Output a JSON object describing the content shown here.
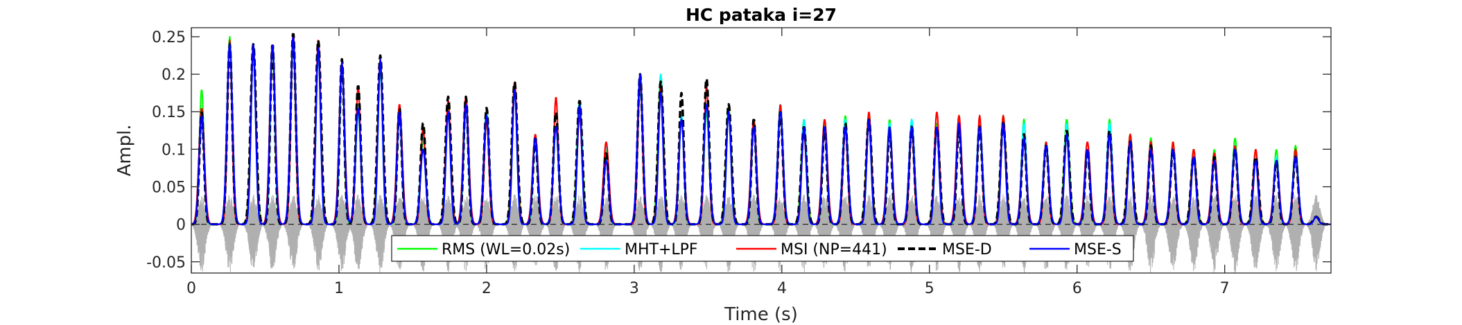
{
  "chart_data": {
    "type": "line",
    "title": "HC pataka i=27",
    "xlabel": "Time (s)",
    "ylabel": "Ampl.",
    "xlim": [
      0,
      7.72
    ],
    "ylim": [
      -0.065,
      0.262
    ],
    "xticks": [
      0,
      1,
      2,
      3,
      4,
      5,
      6,
      7
    ],
    "xtick_labels": [
      "0",
      "1",
      "2",
      "3",
      "4",
      "5",
      "6",
      "7"
    ],
    "yticks": [
      -0.05,
      0,
      0.05,
      0.1,
      0.15,
      0.2,
      0.25
    ],
    "ytick_labels": [
      "-0.05",
      "0",
      "0.05",
      "0.1",
      "0.15",
      "0.2",
      "0.25"
    ],
    "grid": false,
    "legend_position": "bottom",
    "waveform": {
      "color": "#b0b0b0",
      "min": -0.065,
      "max": 0.04
    },
    "zero_line": {
      "y": 0,
      "style": "dashed"
    },
    "syllable_times": [
      0.07,
      0.26,
      0.42,
      0.55,
      0.69,
      0.86,
      1.02,
      1.13,
      1.28,
      1.41,
      1.57,
      1.74,
      1.86,
      2.0,
      2.19,
      2.33,
      2.47,
      2.63,
      2.81,
      3.04,
      3.18,
      3.32,
      3.49,
      3.64,
      3.81,
      3.99,
      4.15,
      4.29,
      4.43,
      4.59,
      4.73,
      4.88,
      5.05,
      5.2,
      5.34,
      5.5,
      5.64,
      5.79,
      5.93,
      6.07,
      6.22,
      6.36,
      6.5,
      6.65,
      6.79,
      6.93,
      7.07,
      7.21,
      7.35,
      7.48,
      7.62
    ],
    "series": [
      {
        "name": "RMS (WL=0.02s)",
        "color": "#00ff00",
        "style": "solid",
        "peaks": [
          0.18,
          0.25,
          0.235,
          0.235,
          0.235,
          0.225,
          0.215,
          0.15,
          0.205,
          0.155,
          0.115,
          0.155,
          0.16,
          0.155,
          0.185,
          0.115,
          0.13,
          0.165,
          0.1,
          0.185,
          0.2,
          0.145,
          0.15,
          0.155,
          0.14,
          0.155,
          0.14,
          0.135,
          0.145,
          0.145,
          0.14,
          0.135,
          0.135,
          0.145,
          0.14,
          0.145,
          0.14,
          0.11,
          0.14,
          0.1,
          0.14,
          0.12,
          0.115,
          0.11,
          0.1,
          0.1,
          0.115,
          0.095,
          0.1,
          0.105,
          0.01
        ]
      },
      {
        "name": "MHT+LPF",
        "color": "#00ffff",
        "style": "solid",
        "peaks": [
          0.15,
          0.24,
          0.24,
          0.24,
          0.245,
          0.23,
          0.215,
          0.15,
          0.21,
          0.15,
          0.12,
          0.15,
          0.165,
          0.15,
          0.18,
          0.115,
          0.13,
          0.16,
          0.105,
          0.18,
          0.2,
          0.145,
          0.155,
          0.15,
          0.135,
          0.16,
          0.14,
          0.14,
          0.14,
          0.14,
          0.135,
          0.14,
          0.13,
          0.14,
          0.14,
          0.14,
          0.135,
          0.11,
          0.135,
          0.1,
          0.135,
          0.115,
          0.11,
          0.105,
          0.095,
          0.09,
          0.105,
          0.09,
          0.09,
          0.095,
          0.01
        ]
      },
      {
        "name": "MSI (NP=441)",
        "color": "#ff0000",
        "style": "solid",
        "peaks": [
          0.155,
          0.245,
          0.24,
          0.24,
          0.255,
          0.245,
          0.215,
          0.185,
          0.22,
          0.16,
          0.13,
          0.165,
          0.17,
          0.14,
          0.19,
          0.12,
          0.17,
          0.145,
          0.11,
          0.195,
          0.185,
          0.14,
          0.185,
          0.15,
          0.14,
          0.16,
          0.12,
          0.14,
          0.13,
          0.15,
          0.13,
          0.13,
          0.15,
          0.145,
          0.145,
          0.145,
          0.11,
          0.11,
          0.12,
          0.11,
          0.12,
          0.12,
          0.11,
          0.11,
          0.1,
          0.095,
          0.105,
          0.1,
          0.085,
          0.1,
          0.01
        ]
      },
      {
        "name": "MSE-D",
        "color": "#000000",
        "style": "dashed",
        "peaks": [
          0.15,
          0.24,
          0.24,
          0.24,
          0.255,
          0.245,
          0.22,
          0.185,
          0.225,
          0.155,
          0.135,
          0.17,
          0.17,
          0.155,
          0.19,
          0.115,
          0.15,
          0.165,
          0.095,
          0.2,
          0.19,
          0.175,
          0.195,
          0.16,
          0.14,
          0.15,
          0.13,
          0.13,
          0.135,
          0.14,
          0.125,
          0.13,
          0.13,
          0.13,
          0.13,
          0.135,
          0.12,
          0.105,
          0.125,
          0.1,
          0.125,
          0.11,
          0.105,
          0.1,
          0.09,
          0.09,
          0.1,
          0.09,
          0.085,
          0.09,
          0.01
        ]
      },
      {
        "name": "MSE-S",
        "color": "#0000ff",
        "style": "solid",
        "peaks": [
          0.145,
          0.24,
          0.24,
          0.24,
          0.25,
          0.235,
          0.215,
          0.155,
          0.22,
          0.15,
          0.1,
          0.15,
          0.16,
          0.145,
          0.18,
          0.115,
          0.13,
          0.16,
          0.085,
          0.2,
          0.175,
          0.14,
          0.16,
          0.15,
          0.13,
          0.15,
          0.13,
          0.13,
          0.13,
          0.14,
          0.13,
          0.13,
          0.13,
          0.135,
          0.13,
          0.135,
          0.115,
          0.105,
          0.12,
          0.1,
          0.12,
          0.11,
          0.1,
          0.1,
          0.09,
          0.085,
          0.1,
          0.085,
          0.085,
          0.09,
          0.01
        ]
      }
    ]
  }
}
